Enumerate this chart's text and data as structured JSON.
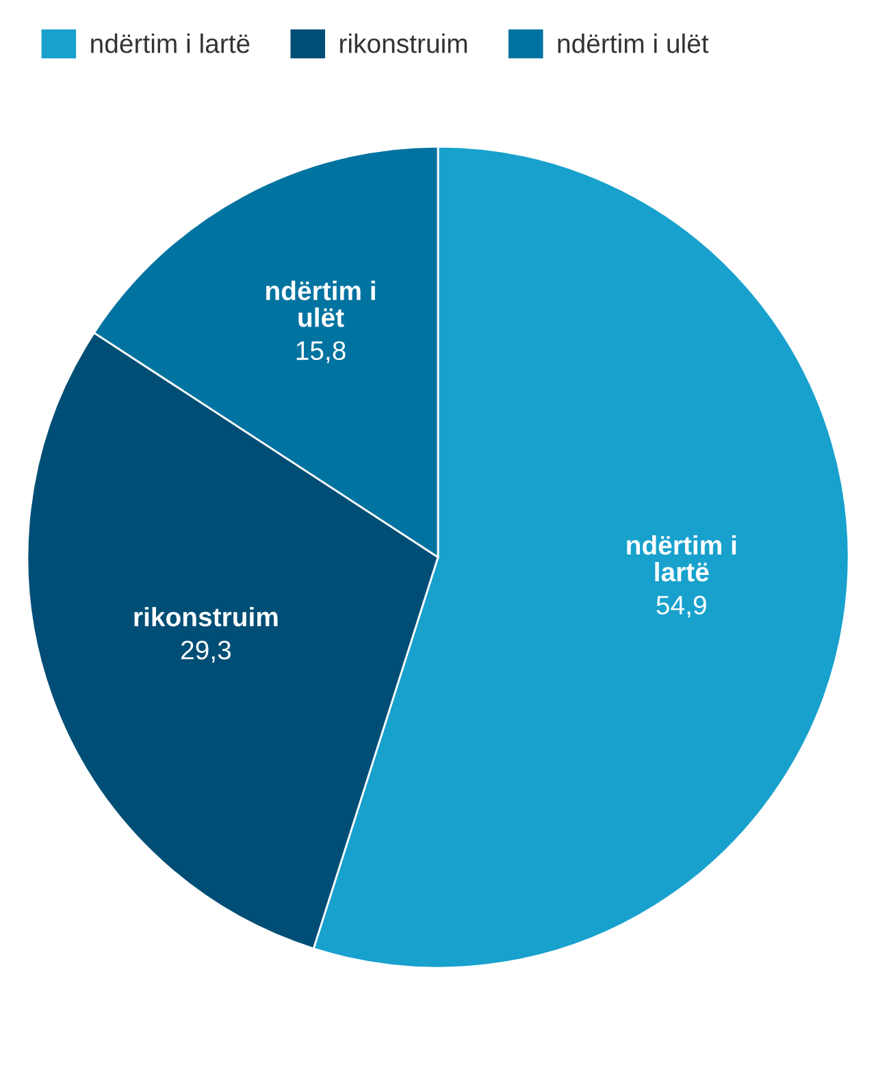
{
  "chart_data": {
    "type": "pie",
    "categories": [
      "ndërtim i lartë",
      "rikonstruim",
      "ndërtim i ulët"
    ],
    "values": [
      54.9,
      29.3,
      15.8
    ],
    "colors": [
      "#18a1cd",
      "#004e76",
      "#0073a0"
    ],
    "value_labels": [
      "54,9",
      "29,3",
      "15,8"
    ],
    "legend": "top left"
  }
}
